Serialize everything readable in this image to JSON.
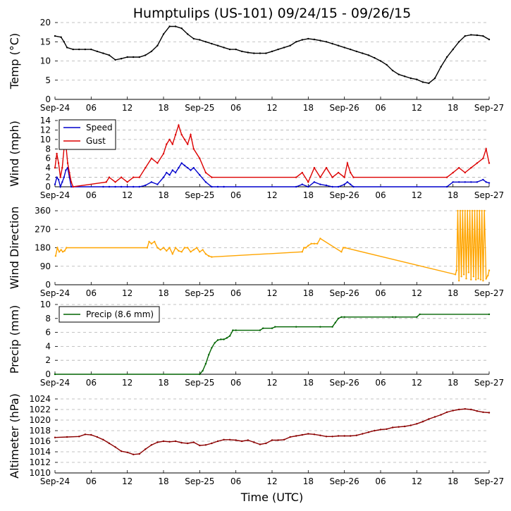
{
  "figure": {
    "title": "Humptulips (US-101) 09/24/15 - 09/26/15",
    "xlabel": "Time (UTC)",
    "x_tick_labels": [
      "Sep-24",
      "06",
      "12",
      "18",
      "Sep-25",
      "06",
      "12",
      "18",
      "Sep-26",
      "06",
      "12",
      "18",
      "Sep-27"
    ],
    "x_range_hours": [
      0,
      72
    ]
  },
  "chart_data": [
    {
      "type": "line",
      "ylabel": "Temp (°C)",
      "ylim": [
        0,
        20
      ],
      "yticks": [
        0,
        5,
        10,
        15,
        20
      ],
      "grid": true,
      "series": [
        {
          "name": "Temp",
          "color": "#000000",
          "x": [
            0,
            1,
            1.5,
            2,
            3,
            4,
            5,
            6,
            7,
            8,
            9,
            10,
            11,
            12,
            13,
            14,
            15,
            16,
            17,
            18,
            19,
            20,
            21,
            22,
            23,
            24,
            25,
            26,
            27,
            28,
            29,
            30,
            31,
            32,
            33,
            34,
            35,
            36,
            37,
            38,
            39,
            40,
            41,
            42,
            43,
            44,
            45,
            46,
            47,
            48,
            49,
            50,
            51,
            52,
            53,
            54,
            55,
            56,
            57,
            58,
            59,
            60,
            61,
            62,
            63,
            64,
            65,
            66,
            67,
            68,
            69,
            70,
            71,
            72
          ],
          "values": [
            16.5,
            16.2,
            15,
            13.5,
            13,
            13,
            13,
            13,
            12.5,
            12,
            11.5,
            10.3,
            10.6,
            11,
            11,
            11,
            11.5,
            12.5,
            14,
            17,
            19,
            19,
            18.5,
            17,
            15.8,
            15.5,
            15,
            14.5,
            14,
            13.5,
            13,
            13,
            12.5,
            12.2,
            12,
            12,
            12,
            12.5,
            13,
            13.5,
            14,
            15,
            15.5,
            15.8,
            15.6,
            15.3,
            15,
            14.5,
            14,
            13.5,
            13,
            12.5,
            12,
            11.5,
            10.8,
            10,
            9,
            7.5,
            6.5,
            6,
            5.5,
            5.2,
            4.5,
            4.2,
            5.5,
            8.5,
            11,
            13,
            15,
            16.5,
            16.8,
            16.7,
            16.5,
            15.6
          ]
        }
      ]
    },
    {
      "type": "line",
      "ylabel": "Wind (mph)",
      "ylim": [
        0,
        14
      ],
      "yticks": [
        0,
        2,
        4,
        6,
        8,
        10,
        12,
        14
      ],
      "grid": true,
      "legend": "top-left",
      "series": [
        {
          "name": "Speed",
          "color": "#0000cc",
          "x": [
            0,
            0.3,
            0.6,
            0.9,
            1.2,
            1.5,
            1.8,
            2.1,
            2.4,
            2.7,
            3.0,
            8.0,
            9,
            10,
            11,
            12,
            13,
            14,
            15,
            16,
            17,
            18,
            18.5,
            19,
            19.5,
            20,
            20.5,
            21,
            21.5,
            22,
            22.5,
            23,
            24,
            25,
            26,
            27,
            28,
            40,
            41,
            42,
            43,
            44,
            45,
            46,
            47,
            48,
            48.5,
            49,
            49.5,
            65,
            66,
            67,
            68,
            69,
            70,
            71,
            71.5,
            72
          ],
          "values": [
            0.5,
            2,
            1.5,
            0,
            1,
            2,
            3.5,
            4,
            2,
            0,
            0,
            0,
            0,
            0,
            0,
            0,
            0,
            0,
            0.3,
            1,
            0.5,
            2,
            3,
            2.5,
            3.5,
            3,
            4,
            5,
            4.5,
            4,
            3.5,
            4,
            2.5,
            1,
            0,
            0,
            0,
            0,
            0.5,
            0,
            1,
            0.5,
            0.3,
            0,
            0,
            0.5,
            1,
            0.5,
            0,
            0,
            1,
            1,
            1,
            1,
            1,
            1.5,
            1,
            0.8
          ]
        },
        {
          "name": "Gust",
          "color": "#dd0000",
          "x": [
            0,
            0.3,
            0.6,
            0.9,
            1.2,
            1.5,
            1.8,
            2.1,
            2.4,
            2.7,
            3.0,
            8.5,
            9,
            10,
            11,
            12,
            13,
            14,
            15,
            16,
            17,
            18,
            18.5,
            19,
            19.5,
            20,
            20.5,
            21,
            21.5,
            22,
            22.5,
            23,
            24,
            25,
            26,
            40,
            41,
            42,
            43,
            44,
            45,
            46,
            47,
            48,
            48.5,
            49,
            49.5,
            65,
            66,
            67,
            68,
            69,
            70,
            71,
            71.5,
            72
          ],
          "values": [
            4,
            7,
            5,
            2,
            4,
            8,
            9,
            5,
            3,
            1,
            0,
            1,
            2,
            1,
            2,
            1,
            2,
            2,
            4,
            6,
            5,
            7,
            9,
            10,
            9,
            11,
            13,
            11,
            10,
            9,
            11,
            8,
            6,
            3,
            2,
            2,
            3,
            1,
            4,
            2,
            4,
            2,
            3,
            2,
            5,
            3,
            2,
            2,
            3,
            4,
            3,
            4,
            5,
            6,
            8,
            5
          ]
        }
      ]
    },
    {
      "type": "line",
      "ylabel": "Wind Direction",
      "ylim": [
        0,
        360
      ],
      "yticks": [
        0,
        90,
        180,
        270,
        360
      ],
      "grid": true,
      "series": [
        {
          "name": "Direction",
          "color": "#ffa500",
          "x": [
            0.1,
            0.4,
            0.7,
            1.0,
            1.3,
            1.6,
            1.9,
            15.3,
            15.6,
            16.0,
            16.5,
            17.0,
            17.5,
            18.0,
            18.5,
            19.0,
            19.5,
            20.0,
            20.5,
            21.0,
            21.5,
            22.0,
            22.5,
            23.0,
            23.5,
            24.0,
            24.5,
            25.0,
            25.5,
            26.0,
            41.0,
            41.3,
            41.6,
            42.0,
            42.5,
            43.0,
            43.5,
            44.0,
            47.5,
            47.8,
            48.1,
            66.4,
            66.6,
            66.8,
            67.0,
            67.2,
            67.4,
            67.6,
            67.8,
            68.0,
            68.2,
            68.4,
            68.6,
            68.8,
            69.0,
            69.2,
            69.4,
            69.6,
            69.8,
            70.0,
            70.2,
            70.4,
            70.6,
            70.8,
            71.0,
            71.2,
            71.5,
            71.8,
            72.0
          ],
          "values": [
            140,
            180,
            160,
            170,
            160,
            165,
            180,
            180,
            210,
            200,
            210,
            180,
            170,
            180,
            165,
            180,
            150,
            180,
            165,
            160,
            180,
            180,
            160,
            170,
            180,
            160,
            170,
            150,
            140,
            135,
            160,
            180,
            180,
            190,
            200,
            200,
            200,
            225,
            160,
            180,
            180,
            50,
            70,
            360,
            20,
            360,
            40,
            360,
            50,
            360,
            30,
            360,
            60,
            360,
            25,
            360,
            40,
            360,
            25,
            360,
            30,
            360,
            25,
            360,
            20,
            360,
            30,
            45,
            70
          ]
        }
      ]
    },
    {
      "type": "line",
      "ylabel": "Precip (mm)",
      "ylim": [
        0,
        10
      ],
      "yticks": [
        0,
        2,
        4,
        6,
        8,
        10
      ],
      "grid": true,
      "legend": "top-left",
      "series": [
        {
          "name": "Precip (8.6 mm)",
          "color": "#006400",
          "x": [
            0,
            24,
            24.5,
            25,
            25.5,
            26,
            26.5,
            27,
            27.5,
            28,
            28.5,
            29,
            29.5,
            30,
            34,
            34.5,
            36,
            36.5,
            40,
            44,
            46,
            46.5,
            47,
            47.5,
            48,
            56,
            56.5,
            60,
            60.5,
            72
          ],
          "values": [
            0,
            0,
            0.5,
            1.5,
            2.8,
            3.8,
            4.5,
            4.9,
            5.0,
            5.0,
            5.2,
            5.5,
            6.3,
            6.3,
            6.3,
            6.6,
            6.6,
            6.8,
            6.8,
            6.8,
            6.8,
            7.4,
            8.0,
            8.2,
            8.2,
            8.2,
            8.2,
            8.2,
            8.6,
            8.6
          ]
        }
      ]
    },
    {
      "type": "line",
      "ylabel": "Altimeter (hPa)",
      "ylim": [
        1010,
        1024
      ],
      "yticks": [
        1010,
        1012,
        1014,
        1016,
        1018,
        1020,
        1022,
        1024
      ],
      "grid": true,
      "series": [
        {
          "name": "Altimeter",
          "color": "#8b0000",
          "x": [
            0,
            2,
            4,
            5,
            6,
            7,
            8,
            9,
            10,
            11,
            12,
            13,
            14,
            15,
            16,
            17,
            18,
            19,
            20,
            21,
            22,
            23,
            24,
            25,
            26,
            27,
            28,
            29,
            30,
            31,
            32,
            33,
            34,
            35,
            36,
            37,
            38,
            39,
            40,
            41,
            42,
            43,
            44,
            45,
            46,
            47,
            48,
            49,
            50,
            51,
            52,
            53,
            54,
            55,
            56,
            57,
            58,
            59,
            60,
            61,
            62,
            63,
            64,
            65,
            66,
            67,
            68,
            69,
            70,
            71,
            72
          ],
          "values": [
            1016.7,
            1016.8,
            1016.9,
            1017.3,
            1017.2,
            1016.8,
            1016.3,
            1015.6,
            1014.9,
            1014.1,
            1013.9,
            1013.5,
            1013.6,
            1014.5,
            1015.3,
            1015.8,
            1016.0,
            1015.9,
            1016.0,
            1015.7,
            1015.6,
            1015.8,
            1015.2,
            1015.3,
            1015.6,
            1016.0,
            1016.3,
            1016.3,
            1016.2,
            1016.0,
            1016.2,
            1015.8,
            1015.4,
            1015.6,
            1016.2,
            1016.2,
            1016.3,
            1016.8,
            1017.0,
            1017.2,
            1017.4,
            1017.3,
            1017.1,
            1016.9,
            1016.9,
            1017.0,
            1017.0,
            1017.0,
            1017.1,
            1017.4,
            1017.7,
            1018.0,
            1018.2,
            1018.3,
            1018.6,
            1018.7,
            1018.8,
            1019.0,
            1019.3,
            1019.7,
            1020.2,
            1020.6,
            1021.0,
            1021.5,
            1021.8,
            1022.0,
            1022.1,
            1022.0,
            1021.7,
            1021.5,
            1021.4
          ]
        }
      ]
    }
  ]
}
